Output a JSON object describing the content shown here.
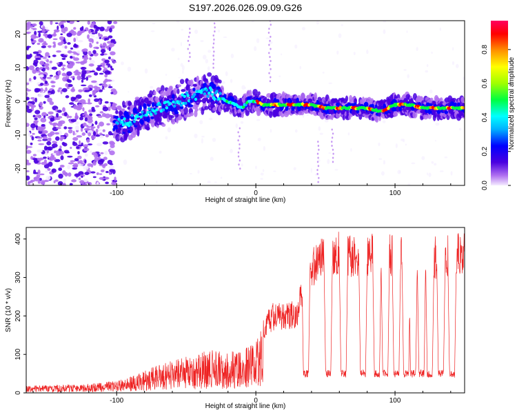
{
  "title": "S197.2026.026.09.09.G26",
  "chart_data": [
    {
      "type": "heatmap",
      "title": "S197.2026.026.09.09.G26",
      "xlabel": "Height of straight line (km)",
      "ylabel": "Frequency (Hz)",
      "xlim": [
        -165,
        150
      ],
      "ylim": [
        -25,
        24
      ],
      "xticks": [
        -100,
        0,
        100
      ],
      "yticks": [
        -20,
        -10,
        0,
        10,
        20
      ],
      "colorbar": {
        "label": "Normalized spectral amplitude",
        "range": [
          0,
          0.97
        ],
        "ticks": [
          "0.0",
          "0.2",
          "0.4",
          "0.6",
          "0.8"
        ],
        "colors": [
          "#f4ecff",
          "#b070f0",
          "#4a00e0",
          "#0000ff",
          "#00b0ff",
          "#00ffff",
          "#00ff40",
          "#a0ff00",
          "#ffff00",
          "#ff9000",
          "#ff0000",
          "#ff0060"
        ]
      },
      "ridge": {
        "x": [
          -100,
          -90,
          -80,
          -70,
          -60,
          -50,
          -40,
          -35,
          -30,
          -25,
          -20,
          -15,
          -10,
          -5,
          0,
          5,
          10,
          20,
          30,
          40,
          50,
          60,
          70,
          80,
          90,
          100,
          110,
          120,
          130,
          140,
          150
        ],
        "y": [
          -6,
          -6,
          -3,
          -2,
          -1,
          1,
          2,
          3,
          2,
          1,
          0,
          -1,
          -2,
          0,
          0,
          -1,
          -1,
          -1,
          -1,
          -1,
          -2,
          -2,
          -2,
          -2,
          -3,
          -1,
          -1,
          -2,
          -2,
          -2,
          -2
        ]
      },
      "noise_region_x": [
        -165,
        -105
      ]
    },
    {
      "type": "line",
      "xlabel": "Height of straight line (km)",
      "ylabel": "SNR (10 * v/v)",
      "xlim": [
        -165,
        150
      ],
      "ylim": [
        0,
        430
      ],
      "xticks": [
        -100,
        0,
        100
      ],
      "yticks": [
        0,
        100,
        200,
        300,
        400
      ],
      "series_color": "#ee2222",
      "envelope_x": [
        -165,
        -140,
        -120,
        -100,
        -90,
        -80,
        -70,
        -60,
        -50,
        -40,
        -30,
        -20,
        -10,
        0,
        10,
        20,
        25,
        30,
        35,
        40,
        50,
        60,
        70,
        80,
        90,
        100,
        110,
        120,
        130,
        140,
        150
      ],
      "envelope_y": [
        18,
        20,
        22,
        30,
        40,
        55,
        70,
        80,
        90,
        100,
        110,
        100,
        110,
        130,
        210,
        220,
        215,
        225,
        300,
        340,
        380,
        385,
        375,
        380,
        370,
        380,
        375,
        380,
        370,
        375,
        380
      ],
      "dropout_x": [
        36,
        52,
        63,
        77,
        87,
        93,
        101,
        108,
        113,
        119,
        125,
        133,
        141
      ],
      "dropout_level": 40
    }
  ]
}
